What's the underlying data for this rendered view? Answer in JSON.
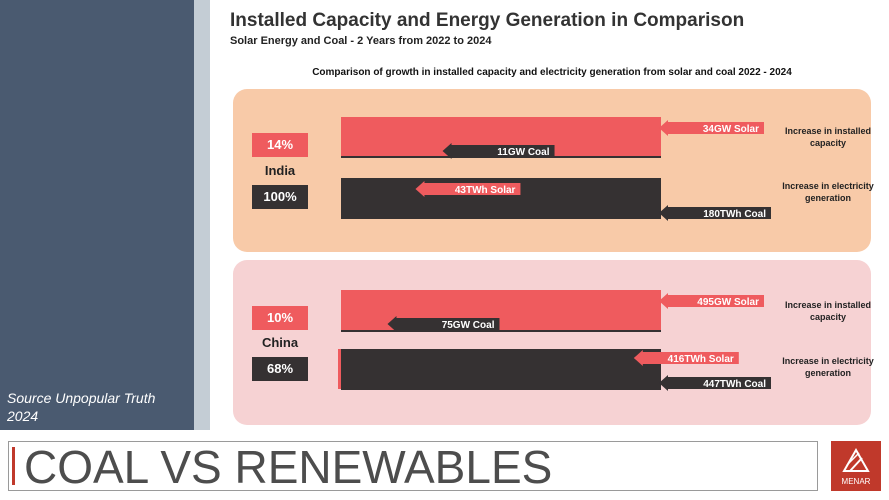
{
  "header": {
    "title": "Installed Capacity and Energy Generation in Comparison",
    "subtitle": "Solar Energy and Coal - 2 Years from 2022 to 2024"
  },
  "source_text": "Source  Unpopular Truth 2024",
  "footer": {
    "banner": "COAL VS RENEWABLES",
    "logo_text": "MENAR"
  },
  "colors": {
    "solar": "#ef5b5e",
    "coal": "#353132",
    "india_panel": "#f8caa8",
    "china_panel": "#f6d2d3",
    "sidebar": "#4a5a70"
  },
  "chart_data": {
    "type": "bar",
    "title": "Comparison of growth in installed capacity and electricity generation from solar and coal 2022 - 2024",
    "row_labels": {
      "capacity": "Increase in installed capacity",
      "generation": "Increase in electricity generation"
    },
    "groups": [
      {
        "country": "India",
        "capacity_pct": "14%",
        "generation_pct": "100%",
        "capacity": {
          "solar": 34,
          "coal": 11,
          "unit": "GW",
          "solar_label": "34GW Solar",
          "coal_label": "11GW Coal"
        },
        "generation": {
          "solar": 43,
          "coal": 180,
          "unit": "TWh",
          "solar_label": "43TWh Solar",
          "coal_label": "180TWh Coal"
        }
      },
      {
        "country": "China",
        "capacity_pct": "10%",
        "generation_pct": "68%",
        "capacity": {
          "solar": 495,
          "coal": 75,
          "unit": "GW",
          "solar_label": "495GW Solar",
          "coal_label": "75GW Coal"
        },
        "generation": {
          "solar": 416,
          "coal": 447,
          "unit": "TWh",
          "solar_label": "416TWh Solar",
          "coal_label": "447TWh Coal"
        }
      }
    ]
  }
}
